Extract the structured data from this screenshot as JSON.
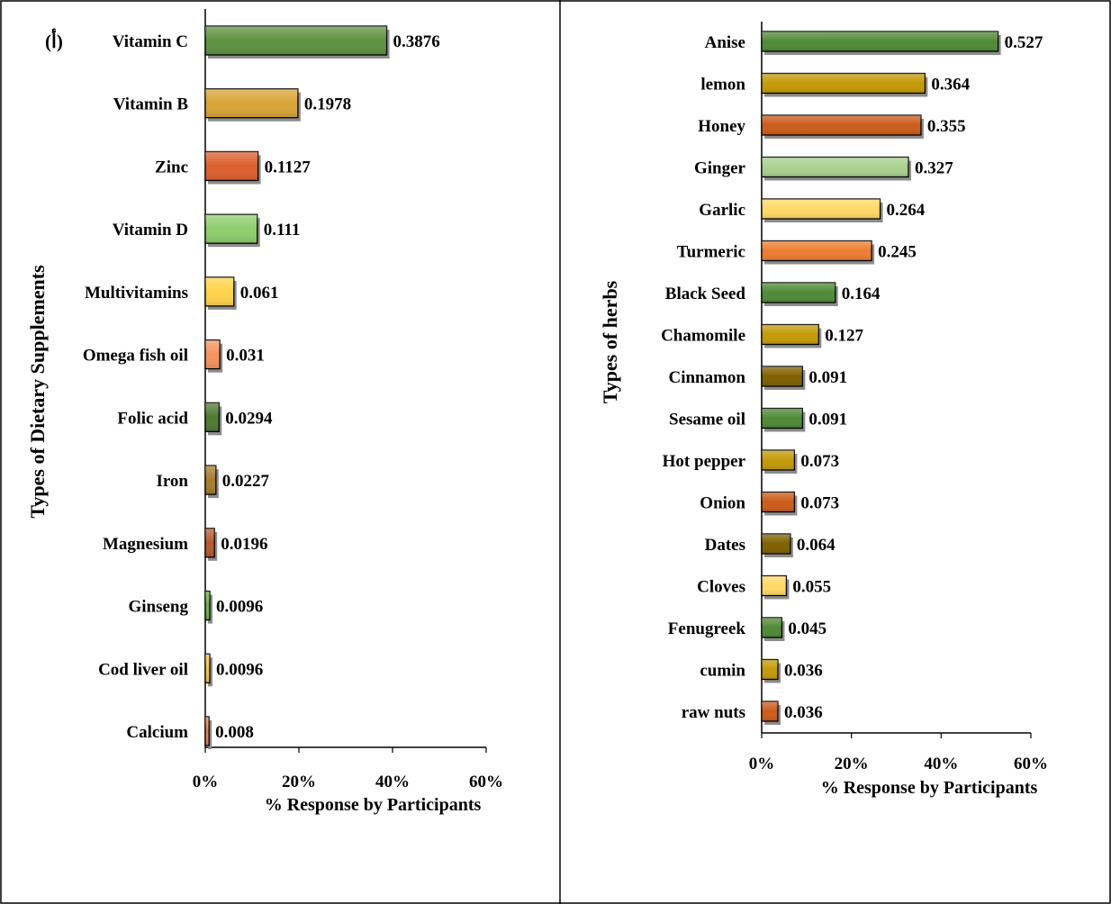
{
  "chart_data": [
    {
      "type": "bar",
      "orientation": "horizontal",
      "panel_label": "(أ)",
      "xlabel": "% Response by Participants",
      "ylabel": "Types of Dietary Supplements",
      "xlim": [
        0,
        0.6
      ],
      "x_ticks": [
        "0%",
        "20%",
        "40%",
        "60%"
      ],
      "categories": [
        "Vitamin C",
        "Vitamin B",
        "Zinc",
        "Vitamin D",
        "Multivitamins",
        "Omega fish oil",
        "Folic acid",
        "Iron",
        "Magnesium",
        "Ginseng",
        "Cod liver oil",
        "Calcium"
      ],
      "values": [
        0.3876,
        0.1978,
        0.1127,
        0.111,
        0.061,
        0.031,
        0.0294,
        0.0227,
        0.0196,
        0.0096,
        0.0096,
        0.008
      ],
      "value_labels": [
        "0.3876",
        "0.1978",
        "0.1127",
        "0.111",
        "0.061",
        "0.031",
        "0.0294",
        "0.0227",
        "0.0196",
        "0.0096",
        "0.0096",
        "0.008"
      ],
      "colors": [
        "#5e9140",
        "#d9a437",
        "#dd5f2e",
        "#8fce6c",
        "#ffd34a",
        "#f4945f",
        "#4e7a33",
        "#a67c2e",
        "#b55a32",
        "#6fb24e",
        "#f2c250",
        "#e6825a"
      ],
      "grid": false
    },
    {
      "type": "bar",
      "orientation": "horizontal",
      "xlabel": "% Response by Participants",
      "ylabel": "Types of herbs",
      "xlim": [
        0,
        0.6
      ],
      "x_ticks": [
        "0%",
        "20%",
        "40%",
        "60%"
      ],
      "categories": [
        "Anise",
        "lemon",
        "Honey",
        "Ginger",
        "Garlic",
        "Turmeric",
        "Black Seed",
        "Chamomile",
        "Cinnamon",
        "Sesame oil",
        "Hot pepper",
        "Onion",
        "Dates",
        "Cloves",
        "Fenugreek",
        "cumin",
        "raw nuts"
      ],
      "values": [
        0.527,
        0.364,
        0.355,
        0.327,
        0.264,
        0.245,
        0.164,
        0.127,
        0.091,
        0.091,
        0.073,
        0.073,
        0.064,
        0.055,
        0.045,
        0.036,
        0.036
      ],
      "value_labels": [
        "0.527",
        "0.364",
        "0.355",
        "0.327",
        "0.264",
        "0.245",
        "0.164",
        "0.127",
        "0.091",
        "0.091",
        "0.073",
        "0.073",
        "0.064",
        "0.055",
        "0.045",
        "0.036",
        "0.036"
      ],
      "colors": [
        "#4f8a36",
        "#c49a08",
        "#cc5c1a",
        "#a9d18e",
        "#ffd966",
        "#ed7d31",
        "#4f8a36",
        "#c49a08",
        "#7f6000",
        "#4f8a36",
        "#c49a08",
        "#cc5c1a",
        "#7f6000",
        "#ffd966",
        "#4f8a36",
        "#c49a08",
        "#cc5c1a"
      ],
      "grid": false
    }
  ]
}
